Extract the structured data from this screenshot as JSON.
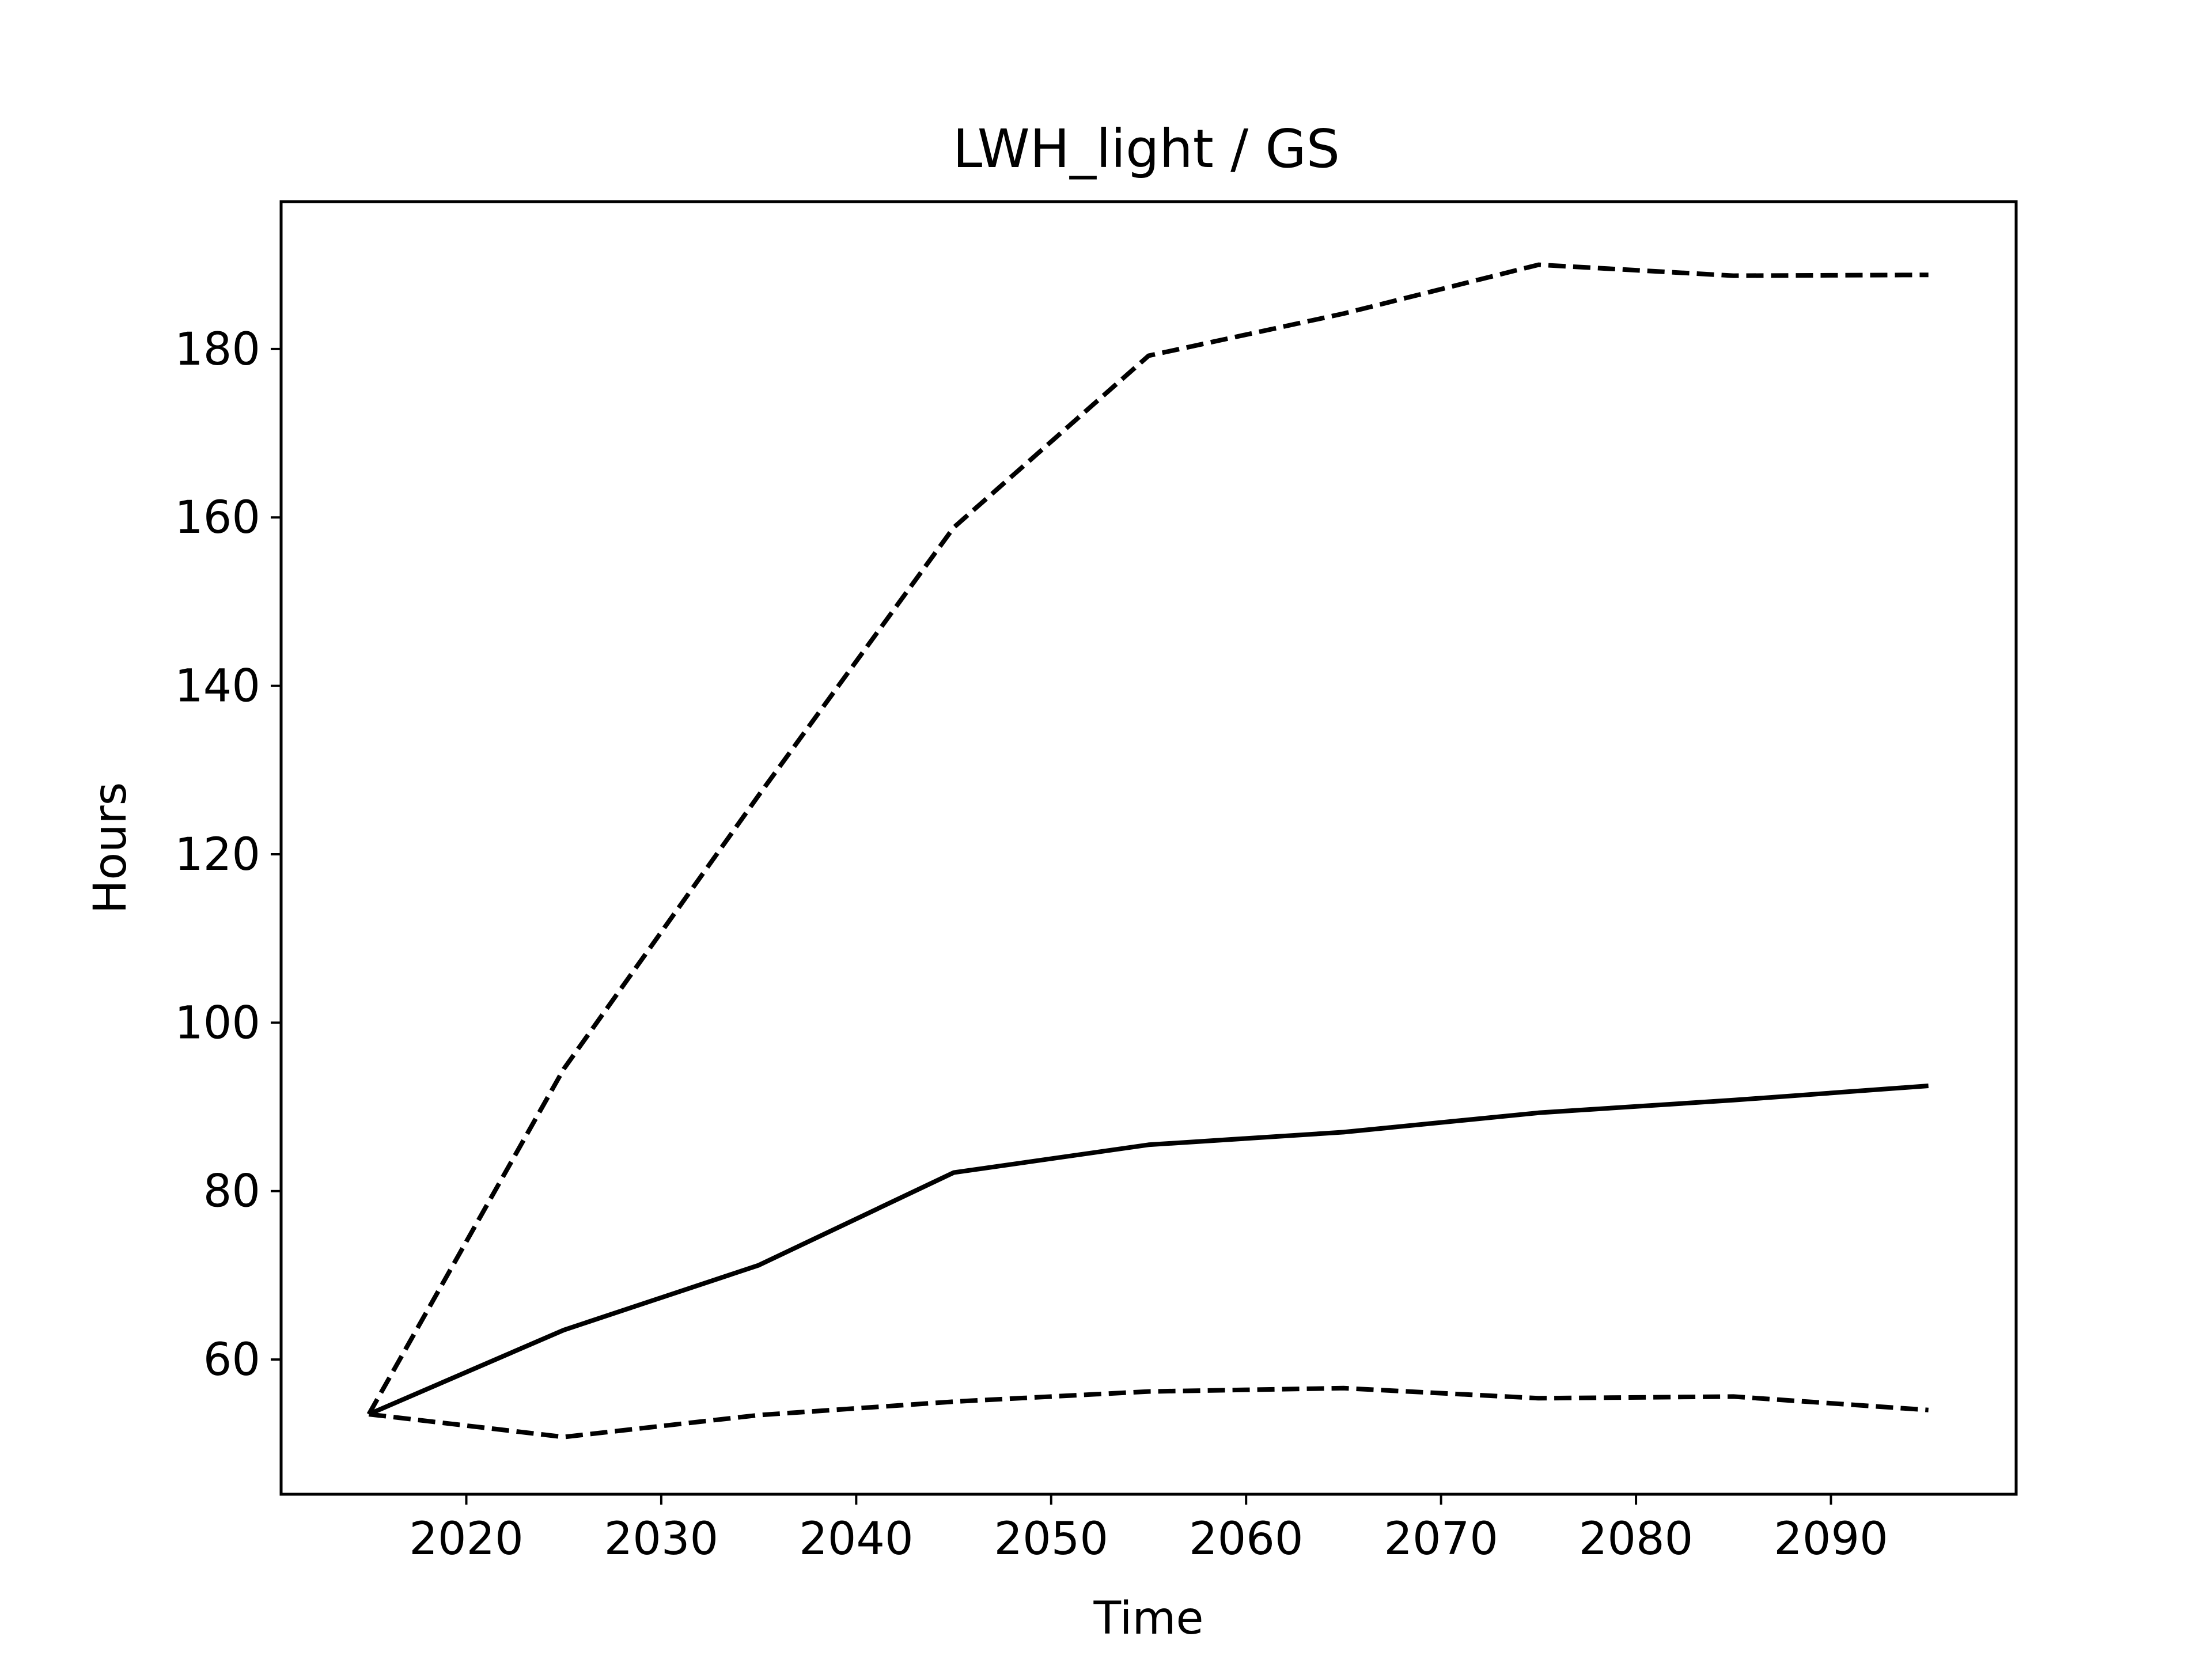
{
  "chart_data": {
    "type": "line",
    "title": "LWH_light / GS",
    "xlabel": "Time",
    "ylabel": "Hours",
    "x": [
      2015,
      2025,
      2035,
      2045,
      2055,
      2065,
      2075,
      2085,
      2095
    ],
    "xlim": [
      2010.5,
      2099.5
    ],
    "ylim": [
      44,
      197.5
    ],
    "xticks": [
      2020,
      2030,
      2040,
      2050,
      2060,
      2070,
      2080,
      2090
    ],
    "yticks": [
      60,
      80,
      100,
      120,
      140,
      160,
      180
    ],
    "grid": false,
    "legend": "none",
    "series": [
      {
        "style": "dashed",
        "color": "#000000",
        "values": [
          53.5,
          94.5,
          127.0,
          158.8,
          179.2,
          184.2,
          190.0,
          188.7,
          188.8
        ]
      },
      {
        "style": "solid",
        "color": "#000000",
        "values": [
          53.5,
          63.5,
          71.2,
          82.2,
          85.5,
          87.0,
          89.3,
          90.8,
          92.5
        ]
      },
      {
        "style": "dashed",
        "color": "#000000",
        "values": [
          53.5,
          50.8,
          53.4,
          55.0,
          56.2,
          56.6,
          55.4,
          55.6,
          54.0
        ]
      }
    ]
  }
}
